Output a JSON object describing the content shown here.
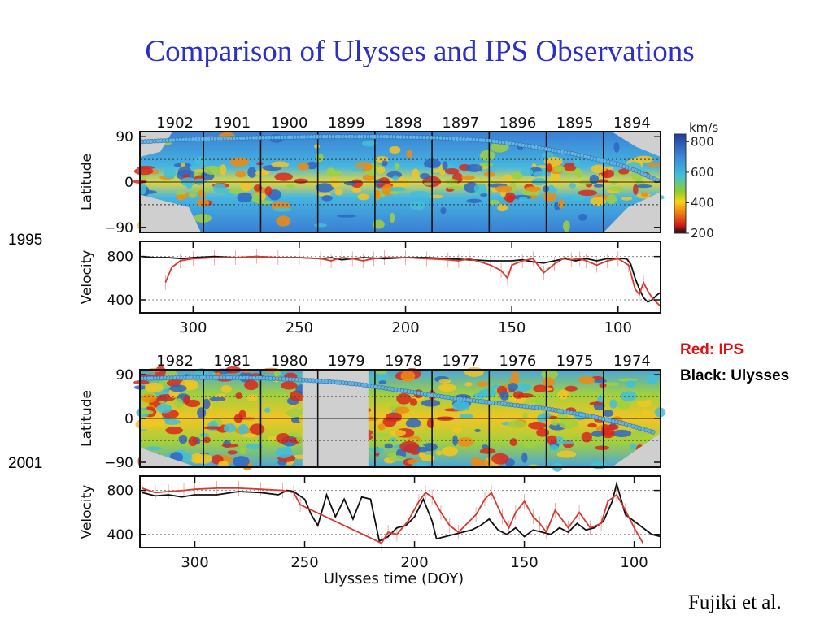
{
  "slide": {
    "title": "Comparison of Ulysses and IPS Observations",
    "credit": "Fujiki et al.",
    "legend_red": "Red: IPS",
    "legend_black": "Black: Ulysses"
  },
  "colorbar": {
    "unit": "km/s",
    "ticks": [
      800,
      600,
      400,
      200
    ],
    "range": [
      200,
      850
    ],
    "colors": [
      "#111111",
      "#d01a1a",
      "#f08a10",
      "#f6d51a",
      "#8fcc2a",
      "#42c0d8",
      "#3b84d6",
      "#1f3f99"
    ]
  },
  "chart_data": [
    {
      "type": "heatmap",
      "panel": "1995 latitude map",
      "ylabel": "Latitude",
      "y_ticks": [
        90,
        0,
        -90
      ],
      "ylim": [
        -100,
        100
      ],
      "x_ticks": [
        300,
        250,
        200,
        150,
        100
      ],
      "xlim": [
        325,
        80
      ],
      "rotations": [
        "1902",
        "1901",
        "1900",
        "1899",
        "1898",
        "1897",
        "1896",
        "1895",
        "1894"
      ],
      "ulysses_track": [
        [
          324,
          80
        ],
        [
          300,
          85
        ],
        [
          270,
          88
        ],
        [
          240,
          90
        ],
        [
          210,
          90
        ],
        [
          185,
          88
        ],
        [
          160,
          82
        ],
        [
          140,
          70
        ],
        [
          120,
          55
        ],
        [
          100,
          35
        ],
        [
          90,
          20
        ],
        [
          80,
          0
        ]
      ]
    },
    {
      "type": "line",
      "panel": "1995 velocity",
      "ylabel": "Velocity",
      "y_ticks": [
        800,
        400
      ],
      "ylim": [
        280,
        940
      ],
      "x_ticks": [
        300,
        250,
        200,
        150,
        100
      ],
      "xlim": [
        325,
        80
      ],
      "series": [
        {
          "name": "IPS",
          "color": "#d63a30",
          "x": [
            313,
            310,
            306,
            300,
            290,
            280,
            270,
            260,
            250,
            240,
            235,
            230,
            225,
            220,
            215,
            210,
            200,
            190,
            180,
            175,
            170,
            160,
            155,
            152,
            150,
            145,
            140,
            135,
            130,
            125,
            122,
            118,
            115,
            110,
            105,
            100,
            95,
            92,
            90,
            88,
            86,
            84,
            82,
            80
          ],
          "y": [
            560,
            700,
            760,
            780,
            790,
            790,
            800,
            790,
            790,
            780,
            760,
            790,
            780,
            760,
            780,
            790,
            790,
            780,
            770,
            760,
            780,
            720,
            670,
            600,
            720,
            760,
            780,
            650,
            730,
            790,
            770,
            780,
            760,
            720,
            760,
            780,
            720,
            500,
            450,
            560,
            480,
            420,
            380,
            340
          ]
        },
        {
          "name": "Ulysses",
          "color": "#111111",
          "x": [
            324,
            318,
            312,
            305,
            300,
            290,
            280,
            270,
            260,
            250,
            240,
            235,
            230,
            220,
            210,
            200,
            190,
            180,
            170,
            160,
            150,
            145,
            140,
            135,
            130,
            125,
            120,
            115,
            110,
            105,
            100,
            96,
            94,
            92,
            90,
            88,
            86,
            84,
            82,
            80
          ],
          "y": [
            800,
            790,
            790,
            780,
            790,
            800,
            790,
            800,
            790,
            790,
            780,
            790,
            770,
            790,
            780,
            790,
            790,
            780,
            770,
            760,
            760,
            770,
            750,
            740,
            760,
            780,
            760,
            780,
            760,
            780,
            780,
            780,
            730,
            600,
            500,
            420,
            380,
            400,
            440,
            470
          ]
        }
      ]
    },
    {
      "type": "heatmap",
      "panel": "2001 latitude map",
      "ylabel": "Latitude",
      "y_ticks": [
        90,
        0,
        -90
      ],
      "ylim": [
        -100,
        100
      ],
      "x_ticks": [
        300,
        250,
        200,
        150,
        100
      ],
      "xlim": [
        325,
        88
      ],
      "rotations": [
        "1982",
        "1981",
        "1980",
        "1979",
        "1978",
        "1977",
        "1976",
        "1975",
        "1974"
      ],
      "ulysses_track": [
        [
          324,
          82
        ],
        [
          300,
          84
        ],
        [
          270,
          83
        ],
        [
          255,
          80
        ],
        [
          240,
          76
        ],
        [
          225,
          70
        ],
        [
          210,
          60
        ],
        [
          195,
          50
        ],
        [
          180,
          40
        ],
        [
          160,
          30
        ],
        [
          140,
          20
        ],
        [
          120,
          5
        ],
        [
          105,
          -10
        ],
        [
          90,
          -30
        ]
      ]
    },
    {
      "type": "line",
      "panel": "2001 velocity",
      "ylabel": "Velocity",
      "y_ticks": [
        800,
        400
      ],
      "ylim": [
        280,
        930
      ],
      "x_ticks": [
        300,
        250,
        200,
        150,
        100
      ],
      "xlim": [
        325,
        88
      ],
      "xlabel": "Ulysses time (DOY)",
      "series": [
        {
          "name": "IPS",
          "color": "#d63a30",
          "x": [
            324,
            318,
            312,
            305,
            300,
            290,
            280,
            270,
            260,
            255,
            252,
            215,
            212,
            208,
            203,
            198,
            195,
            192,
            188,
            184,
            180,
            172,
            168,
            165,
            160,
            157,
            154,
            150,
            146,
            143,
            140,
            136,
            130,
            125,
            120,
            115,
            112,
            108,
            104,
            100,
            96
          ],
          "y": [
            820,
            780,
            790,
            800,
            810,
            820,
            820,
            810,
            800,
            780,
            670,
            320,
            420,
            400,
            520,
            700,
            780,
            740,
            600,
            480,
            420,
            580,
            720,
            780,
            560,
            460,
            600,
            700,
            560,
            500,
            420,
            620,
            460,
            600,
            460,
            500,
            700,
            760,
            620,
            460,
            320
          ]
        },
        {
          "name": "Ulysses",
          "color": "#111111",
          "x": [
            324,
            318,
            312,
            306,
            300,
            290,
            280,
            270,
            262,
            258,
            255,
            250,
            247,
            244,
            240,
            236,
            232,
            228,
            224,
            220,
            216,
            212,
            208,
            204,
            200,
            196,
            192,
            190,
            186,
            182,
            178,
            174,
            170,
            166,
            162,
            158,
            154,
            150,
            146,
            142,
            138,
            134,
            130,
            126,
            122,
            118,
            114,
            110,
            108,
            104,
            100,
            96,
            92,
            88
          ],
          "y": [
            780,
            750,
            760,
            740,
            760,
            760,
            790,
            780,
            760,
            800,
            790,
            720,
            580,
            480,
            760,
            560,
            720,
            540,
            740,
            720,
            340,
            380,
            460,
            480,
            560,
            720,
            520,
            360,
            380,
            400,
            420,
            440,
            480,
            540,
            440,
            400,
            460,
            380,
            440,
            420,
            400,
            460,
            420,
            500,
            440,
            460,
            520,
            700,
            860,
            580,
            520,
            460,
            400,
            380
          ]
        }
      ]
    }
  ],
  "panel_years": [
    "1995",
    "2001"
  ]
}
